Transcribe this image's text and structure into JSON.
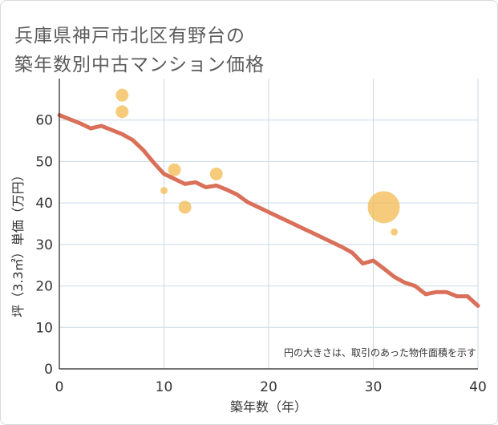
{
  "title_lines": [
    "兵庫県神戸市北区有野台の",
    "築年数別中古マンション価格"
  ],
  "note": "円の大きさは、取引のあった物件面積を示す",
  "colors": {
    "line": "#d9705a",
    "bubble": "#f2b949",
    "grid": "#c9d9e6",
    "axis": "#222222"
  },
  "chart_data": {
    "type": "scatter",
    "xlabel": "築年数（年）",
    "ylabel": "坪（3.3㎡）単価（万円）",
    "xlim": [
      0,
      40
    ],
    "ylim": [
      0,
      70
    ],
    "x_ticks": [
      0,
      10,
      20,
      30,
      40
    ],
    "y_ticks": [
      0,
      10,
      20,
      30,
      40,
      50,
      60
    ],
    "grid": true,
    "line_series": {
      "points": [
        [
          0,
          61.2
        ],
        [
          1,
          60.2
        ],
        [
          2,
          59.2
        ],
        [
          3,
          58.0
        ],
        [
          4,
          58.6
        ],
        [
          5,
          57.6
        ],
        [
          6,
          56.6
        ],
        [
          7,
          55.2
        ],
        [
          8,
          52.8
        ],
        [
          9,
          49.8
        ],
        [
          10,
          47.0
        ],
        [
          11,
          45.8
        ],
        [
          12,
          44.6
        ],
        [
          13,
          45.0
        ],
        [
          14,
          43.8
        ],
        [
          15,
          44.2
        ],
        [
          16,
          43.2
        ],
        [
          17,
          42.0
        ],
        [
          18,
          40.2
        ],
        [
          19,
          39.0
        ],
        [
          20,
          37.8
        ],
        [
          21,
          36.6
        ],
        [
          22,
          35.4
        ],
        [
          23,
          34.2
        ],
        [
          24,
          33.0
        ],
        [
          25,
          31.8
        ],
        [
          26,
          30.6
        ],
        [
          27,
          29.4
        ],
        [
          28,
          28.0
        ],
        [
          29,
          25.4
        ],
        [
          30,
          26.1
        ],
        [
          31,
          24.2
        ],
        [
          32,
          22.2
        ],
        [
          33,
          20.8
        ],
        [
          34,
          20.0
        ],
        [
          35,
          18.0
        ],
        [
          36,
          18.5
        ],
        [
          37,
          18.5
        ],
        [
          38,
          17.5
        ],
        [
          39,
          17.5
        ],
        [
          40,
          15.2
        ]
      ]
    },
    "bubbles": [
      {
        "x": 6,
        "y": 66.0,
        "size": 8
      },
      {
        "x": 6,
        "y": 62.0,
        "size": 8
      },
      {
        "x": 10,
        "y": 43.0,
        "size": 4.5
      },
      {
        "x": 11,
        "y": 48.0,
        "size": 8
      },
      {
        "x": 12,
        "y": 39.0,
        "size": 8
      },
      {
        "x": 15,
        "y": 47.0,
        "size": 8
      },
      {
        "x": 31,
        "y": 39.0,
        "size": 20
      },
      {
        "x": 32,
        "y": 33.0,
        "size": 4.5
      }
    ]
  }
}
